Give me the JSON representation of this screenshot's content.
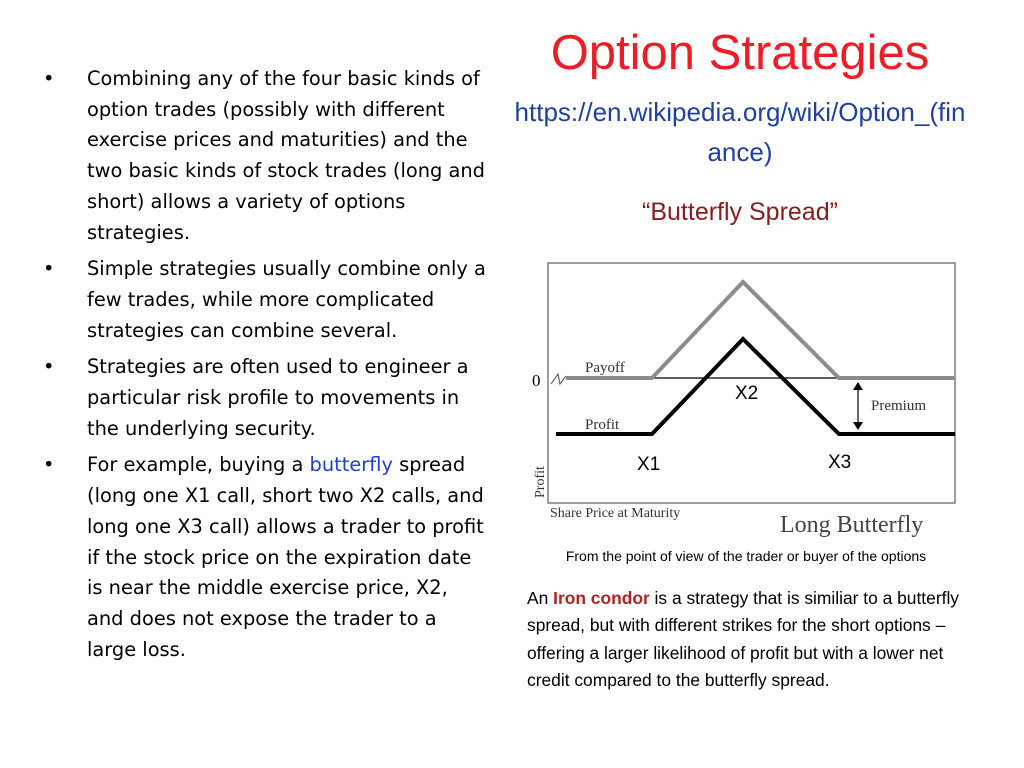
{
  "bullets": [
    {
      "marker": "•",
      "text": "Combining any of the four basic kinds of option trades (possibly with different exercise prices and maturities) and the two basic kinds of stock trades (long and short) allows a variety of options strategies."
    },
    {
      "marker": "•",
      "text": "Simple strategies usually combine only a few trades, while more complicated strategies can combine several."
    },
    {
      "marker": "•",
      "text": "Strategies are often used to engineer a particular risk profile to movements in the underlying security."
    },
    {
      "marker": "•",
      "text_before": "For example, buying a ",
      "link_text": "butterfly",
      "text_after": " spread (long one X1 call, short two X2 calls, and long one X3 call) allows a trader to profit if the stock price on the expiration date is near the middle exercise price, X2, and does not expose the trader to a large loss."
    }
  ],
  "title": "Option Strategies",
  "url": "https://en.wikipedia.org/wiki/Option_(finance)",
  "subtitle": "“Butterfly Spread”",
  "diagram": {
    "zero_label": "0",
    "payoff_label": "Payoff",
    "profit_label": "Profit",
    "premium_label": "Premium",
    "x1_label": "X1",
    "x2_label": "X2",
    "x3_label": "X3",
    "y_axis_label": "Profit",
    "x_axis_label": "Share Price at Maturity",
    "diagram_title": "Long Butterfly"
  },
  "caption": "From the point of view of the trader or buyer of the options",
  "note": {
    "before": "An ",
    "highlight": "Iron condor",
    "after": " is a strategy that is similiar to a butterfly spread, but with different strikes for the short options – offering a larger likelihood of profit but with a lower net credit compared to the butterfly spread."
  },
  "colors": {
    "title": "#ee1c25",
    "url": "#1f3fa6",
    "subtitle": "#8b1a1a",
    "link": "#1f3fd6",
    "highlight": "#b22222",
    "payoff_line": "#8c8c8c",
    "profit_line": "#000000"
  }
}
